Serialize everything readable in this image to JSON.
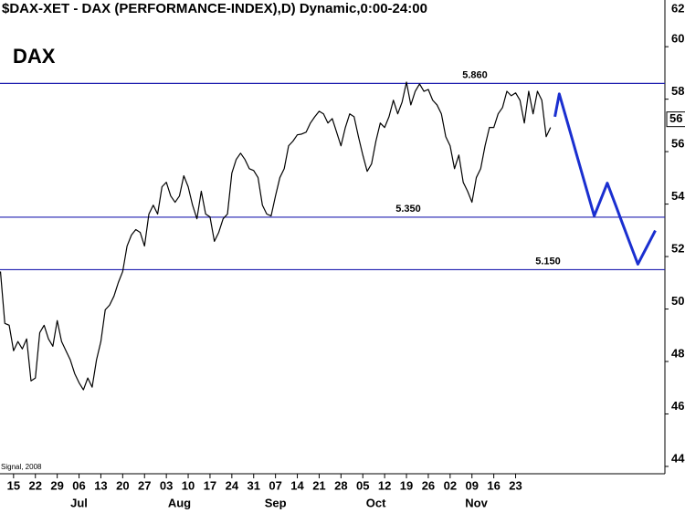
{
  "chart_data": {
    "type": "line",
    "title": "$DAX-XET - DAX (PERFORMANCE-INDEX),D) Dynamic,0:00-24:00",
    "symbol": "DAX",
    "credit": "Signal, 2008",
    "last_label": "56",
    "categories": [
      null,
      null,
      null,
      "15",
      null,
      null,
      null,
      null,
      "22",
      null,
      null,
      null,
      null,
      "29",
      null,
      null,
      null,
      null,
      "06",
      null,
      null,
      null,
      null,
      "13",
      null,
      null,
      null,
      null,
      "20",
      null,
      null,
      null,
      null,
      "27",
      null,
      null,
      null,
      null,
      "03",
      null,
      null,
      null,
      null,
      "10",
      null,
      null,
      null,
      null,
      "17",
      null,
      null,
      null,
      null,
      "24",
      null,
      null,
      null,
      null,
      "31",
      null,
      null,
      null,
      null,
      "07",
      null,
      null,
      null,
      null,
      "14",
      null,
      null,
      null,
      null,
      "21",
      null,
      null,
      null,
      null,
      "28",
      null,
      null,
      null,
      null,
      "05",
      null,
      null,
      null,
      null,
      "12",
      null,
      null,
      null,
      null,
      "19",
      null,
      null,
      null,
      null,
      "26",
      null,
      null,
      null,
      null,
      "02",
      null,
      null,
      null,
      null,
      "09",
      null,
      null,
      null,
      null,
      "16",
      null,
      null,
      null,
      null,
      "23",
      null,
      null,
      null,
      null,
      null,
      null,
      null,
      null,
      null,
      null,
      null,
      null,
      null,
      null,
      null,
      null,
      null,
      null,
      null,
      null,
      null,
      null,
      null,
      null,
      null,
      null,
      null,
      null,
      null,
      null,
      null,
      null
    ],
    "months": [
      null,
      null,
      null,
      null,
      null,
      null,
      null,
      null,
      null,
      null,
      null,
      null,
      null,
      null,
      null,
      null,
      null,
      null,
      "Jul",
      null,
      null,
      null,
      null,
      null,
      null,
      null,
      null,
      null,
      null,
      null,
      null,
      null,
      null,
      null,
      null,
      null,
      null,
      null,
      null,
      null,
      null,
      "Aug",
      null,
      null,
      null,
      null,
      null,
      null,
      null,
      null,
      null,
      null,
      null,
      null,
      null,
      null,
      null,
      null,
      null,
      null,
      null,
      null,
      null,
      "Sep",
      null,
      null,
      null,
      null,
      null,
      null,
      null,
      null,
      null,
      null,
      null,
      null,
      null,
      null,
      null,
      null,
      null,
      null,
      null,
      null,
      null,
      null,
      "Oct",
      null,
      null,
      null,
      null,
      null,
      null,
      null,
      null,
      null,
      null,
      null,
      null,
      null,
      null,
      null,
      null,
      null,
      null,
      null,
      null,
      null,
      null,
      "Nov",
      null,
      null,
      null,
      null,
      null,
      null,
      null,
      null,
      null,
      null,
      null,
      null,
      null,
      null,
      null,
      null,
      null,
      null,
      null,
      null,
      null,
      null,
      null,
      null,
      null,
      null,
      null,
      null,
      null,
      null,
      null,
      null,
      null,
      null,
      null,
      null,
      null,
      null,
      null,
      null,
      null,
      null,
      null,
      null
    ],
    "series": [
      {
        "color": "#000000",
        "values": [
          5143,
          4945,
          4938,
          4841,
          4876,
          4848,
          4886,
          4726,
          4737,
          4910,
          4938,
          4886,
          4858,
          4956,
          4876,
          4841,
          4806,
          4754,
          4719,
          4692,
          4737,
          4702,
          4806,
          4876,
          4997,
          5015,
          5049,
          5101,
          5143,
          5240,
          5282,
          5303,
          5292,
          5240,
          5362,
          5396,
          5362,
          5466,
          5483,
          5431,
          5407,
          5431,
          5508,
          5466,
          5396,
          5344,
          5449,
          5362,
          5351,
          5258,
          5292,
          5344,
          5362,
          5518,
          5570,
          5594,
          5570,
          5535,
          5528,
          5501,
          5396,
          5362,
          5355,
          5431,
          5501,
          5535,
          5622,
          5640,
          5664,
          5667,
          5674,
          5709,
          5733,
          5754,
          5744,
          5709,
          5726,
          5674,
          5622,
          5692,
          5744,
          5733,
          5657,
          5587,
          5525,
          5553,
          5640,
          5709,
          5692,
          5733,
          5796,
          5744,
          5789,
          5865,
          5778,
          5830,
          5858,
          5830,
          5837,
          5796,
          5778,
          5744,
          5657,
          5622,
          5535,
          5587,
          5483,
          5449,
          5407,
          5501,
          5535,
          5622,
          5692,
          5692,
          5744,
          5768,
          5830,
          5813,
          5824,
          5796,
          5709,
          5830,
          5744,
          5830,
          5796,
          5657,
          5692,
          null,
          null,
          null,
          null,
          null,
          null,
          null,
          null,
          null,
          null,
          null,
          null,
          null,
          null,
          null,
          null,
          null,
          null,
          null,
          null,
          null,
          null,
          null,
          null
        ]
      },
      {
        "color": "#1a2fd0",
        "values": [
          null,
          null,
          null,
          null,
          null,
          null,
          null,
          null,
          null,
          null,
          null,
          null,
          null,
          null,
          null,
          null,
          null,
          null,
          null,
          null,
          null,
          null,
          null,
          null,
          null,
          null,
          null,
          null,
          null,
          null,
          null,
          null,
          null,
          null,
          null,
          null,
          null,
          null,
          null,
          null,
          null,
          null,
          null,
          null,
          null,
          null,
          null,
          null,
          null,
          null,
          null,
          null,
          null,
          null,
          null,
          null,
          null,
          null,
          null,
          null,
          null,
          null,
          null,
          null,
          null,
          null,
          null,
          null,
          null,
          null,
          null,
          null,
          null,
          null,
          null,
          null,
          null,
          null,
          null,
          null,
          null,
          null,
          null,
          null,
          null,
          null,
          null,
          null,
          null,
          null,
          null,
          null,
          null,
          null,
          null,
          null,
          null,
          null,
          null,
          null,
          null,
          null,
          null,
          null,
          null,
          null,
          null,
          null,
          null,
          null,
          null,
          null,
          null,
          null,
          null,
          null,
          null,
          null,
          null,
          null,
          null,
          null,
          null,
          null,
          null,
          null,
          null,
          5733,
          5820,
          5762,
          5704,
          5646,
          5587,
          5529,
          5471,
          5413,
          5355,
          5396,
          5438,
          5480,
          5436,
          5392,
          5347,
          5303,
          5259,
          5215,
          5171,
          5203,
          5235,
          5267,
          5299
        ]
      }
    ],
    "levels": [
      {
        "value": 5860,
        "label": "5.860",
        "color": "#2020b0"
      },
      {
        "value": 5350,
        "label": "5.350",
        "color": "#2020b0"
      },
      {
        "value": 5150,
        "label": "5.150",
        "color": "#2020b0"
      }
    ],
    "ylim": [
      4372,
      6178
    ],
    "yticks": [
      {
        "value": 4400,
        "label": "44"
      },
      {
        "value": 4600,
        "label": "46"
      },
      {
        "value": 4800,
        "label": "48"
      },
      {
        "value": 5000,
        "label": "50"
      },
      {
        "value": 5200,
        "label": "52"
      },
      {
        "value": 5400,
        "label": "54"
      },
      {
        "value": 5600,
        "label": "56"
      },
      {
        "value": 5800,
        "label": "58"
      },
      {
        "value": 6000,
        "label": "60"
      },
      {
        "value": 6200,
        "label": "62"
      }
    ],
    "y_axis_side": "right"
  }
}
